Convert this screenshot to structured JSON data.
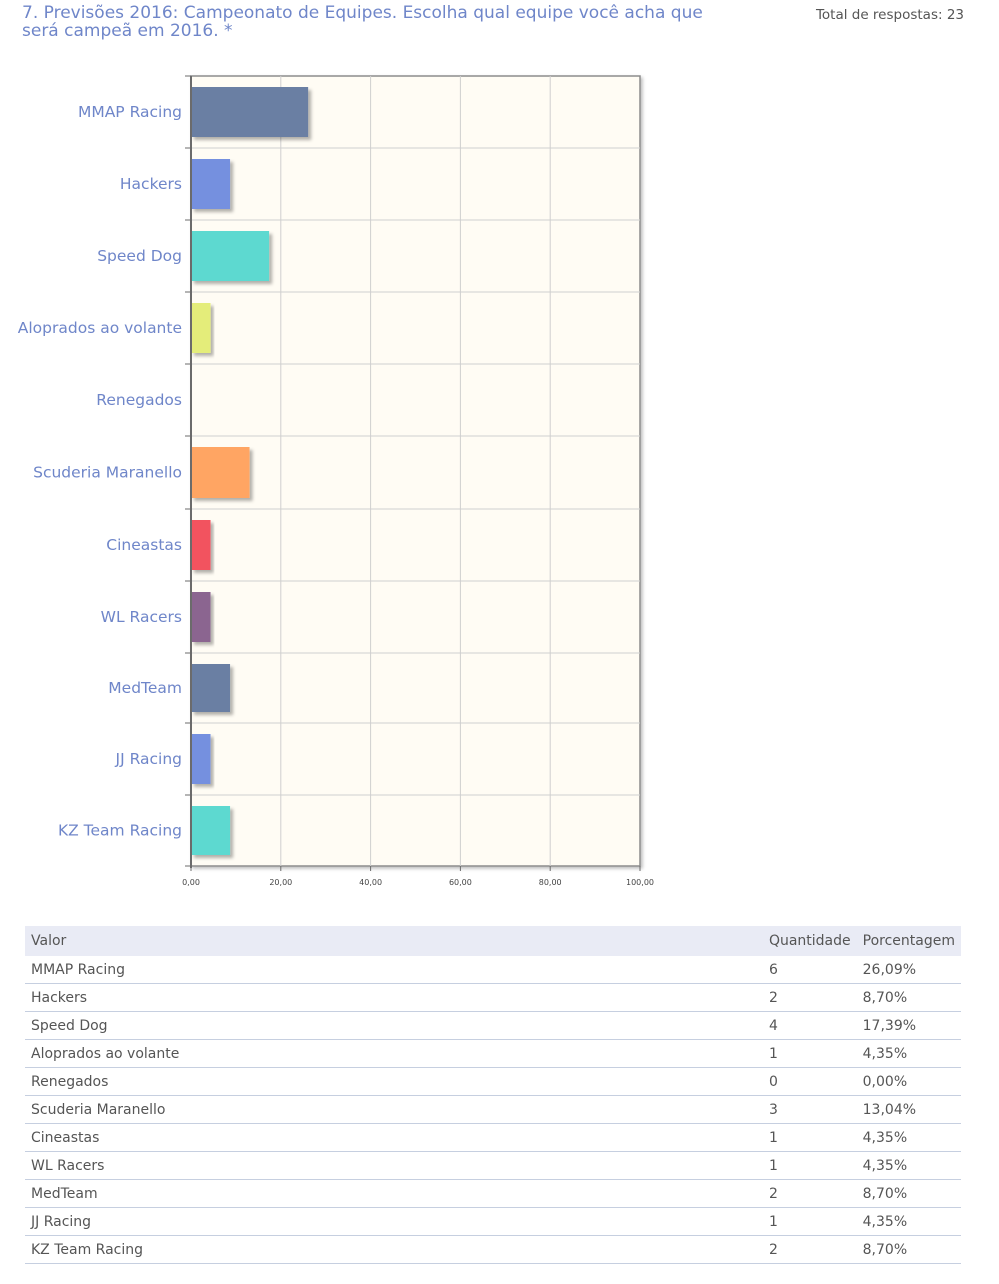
{
  "question": {
    "title": "7. Previsões 2016: Campeonato de Equipes. Escolha qual equipe você acha que será campeã em 2016. *",
    "total": "Total de respostas: 23"
  },
  "chart_data": {
    "type": "bar",
    "orientation": "horizontal",
    "categories": [
      "MMAP Racing",
      "Hackers",
      "Speed Dog",
      "Aloprados ao volante",
      "Renegados",
      "Scuderia Maranello",
      "Cineastas",
      "WL Racers",
      "MedTeam",
      "JJ Racing",
      "KZ Team Racing"
    ],
    "values": [
      26.09,
      8.7,
      17.39,
      4.35,
      0.0,
      13.04,
      4.35,
      4.35,
      8.7,
      4.35,
      8.7
    ],
    "colors": [
      "#6b7fa3",
      "#7590df",
      "#5dd9d0",
      "#e4ed7a",
      "#cccccc",
      "#ffa563",
      "#f2525f",
      "#8b6590",
      "#6b7fa3",
      "#7590df",
      "#5dd9d0"
    ],
    "xlim": [
      0,
      100
    ],
    "xticks": [
      "0,00",
      "20,00",
      "40,00",
      "60,00",
      "80,00",
      "100,00"
    ],
    "grid": true,
    "legend": "none"
  },
  "table": {
    "headers": {
      "value": "Valor",
      "quantity": "Quantidade",
      "percent": "Porcentagem"
    },
    "rows": [
      {
        "value": "MMAP Racing",
        "quantity": "6",
        "percent": "26,09%"
      },
      {
        "value": "Hackers",
        "quantity": "2",
        "percent": "8,70%"
      },
      {
        "value": "Speed Dog",
        "quantity": "4",
        "percent": "17,39%"
      },
      {
        "value": "Aloprados ao volante",
        "quantity": "1",
        "percent": "4,35%"
      },
      {
        "value": "Renegados",
        "quantity": "0",
        "percent": "0,00%"
      },
      {
        "value": "Scuderia Maranello",
        "quantity": "3",
        "percent": "13,04%"
      },
      {
        "value": "Cineastas",
        "quantity": "1",
        "percent": "4,35%"
      },
      {
        "value": "WL Racers",
        "quantity": "1",
        "percent": "4,35%"
      },
      {
        "value": "MedTeam",
        "quantity": "2",
        "percent": "8,70%"
      },
      {
        "value": "JJ Racing",
        "quantity": "1",
        "percent": "4,35%"
      },
      {
        "value": "KZ Team Racing",
        "quantity": "2",
        "percent": "8,70%"
      }
    ]
  }
}
